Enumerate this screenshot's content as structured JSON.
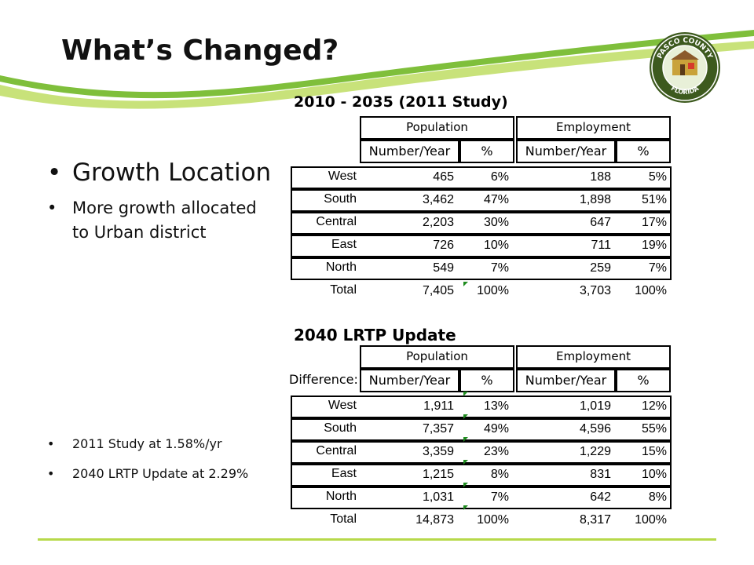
{
  "slide": {
    "title": "What’s Changed?",
    "bullets": [
      {
        "text": "Growth Location",
        "level": 1
      },
      {
        "text": "More growth allocated to Urban district",
        "level": 2
      }
    ],
    "notes": [
      "2011 Study at 1.58%/yr",
      "2040 LRTP Update at 2.29%"
    ],
    "seal": {
      "top_text": "PASCO COUNTY",
      "bottom_text": "FLORIDA"
    }
  },
  "colors": {
    "swoosh_outer": "#7fbf3b",
    "swoosh_inner": "#c8e27a",
    "accent_line": "#b7d94a",
    "marker": "#1e8b1e"
  },
  "table_2011": {
    "title": "2010 - 2035 (2011 Study)",
    "group_headers": [
      "Population",
      "Employment"
    ],
    "sub_headers": [
      "Number/Year",
      "%",
      "Number/Year",
      "%"
    ],
    "rows": [
      {
        "label": "West",
        "pop": "465",
        "pop_pct": "6%",
        "emp": "188",
        "emp_pct": "5%"
      },
      {
        "label": "South",
        "pop": "3,462",
        "pop_pct": "47%",
        "emp": "1,898",
        "emp_pct": "51%"
      },
      {
        "label": "Central",
        "pop": "2,203",
        "pop_pct": "30%",
        "emp": "647",
        "emp_pct": "17%"
      },
      {
        "label": "East",
        "pop": "726",
        "pop_pct": "10%",
        "emp": "711",
        "emp_pct": "19%"
      },
      {
        "label": "North",
        "pop": "549",
        "pop_pct": "7%",
        "emp": "259",
        "emp_pct": "7%"
      }
    ],
    "total": {
      "label": "Total",
      "pop": "7,405",
      "pop_pct": "100%",
      "emp": "3,703",
      "emp_pct": "100%"
    }
  },
  "table_2040": {
    "title": "2040 LRTP Update",
    "difference_label": "Difference:",
    "group_headers": [
      "Population",
      "Employment"
    ],
    "sub_headers": [
      "Number/Year",
      "%",
      "Number/Year",
      "%"
    ],
    "rows": [
      {
        "label": "West",
        "pop": "1,911",
        "pop_pct": "13%",
        "emp": "1,019",
        "emp_pct": "12%"
      },
      {
        "label": "South",
        "pop": "7,357",
        "pop_pct": "49%",
        "emp": "4,596",
        "emp_pct": "55%"
      },
      {
        "label": "Central",
        "pop": "3,359",
        "pop_pct": "23%",
        "emp": "1,229",
        "emp_pct": "15%"
      },
      {
        "label": "East",
        "pop": "1,215",
        "pop_pct": "8%",
        "emp": "831",
        "emp_pct": "10%"
      },
      {
        "label": "North",
        "pop": "1,031",
        "pop_pct": "7%",
        "emp": "642",
        "emp_pct": "8%"
      }
    ],
    "total": {
      "label": "Total",
      "pop": "14,873",
      "pop_pct": "100%",
      "emp": "8,317",
      "emp_pct": "100%"
    }
  }
}
